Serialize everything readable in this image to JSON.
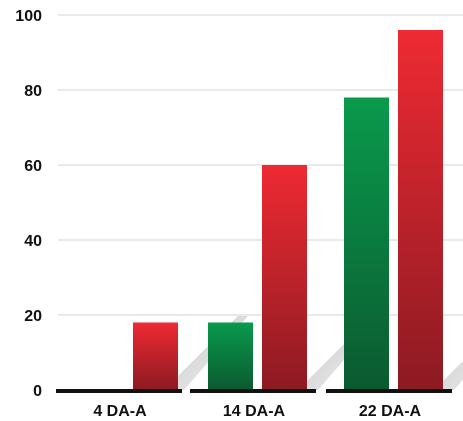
{
  "chart_data": {
    "type": "bar",
    "categories": [
      "4 DA-A",
      "14 DA-A",
      "22 DA-A"
    ],
    "series": [
      {
        "values": [
          0,
          18,
          78
        ],
        "color": "#0b8a44"
      },
      {
        "values": [
          18,
          60,
          96
        ],
        "color": "#d9232d"
      }
    ],
    "ylim": [
      0,
      100
    ],
    "yticks": [
      "0",
      "20",
      "40",
      "60",
      "80",
      "100"
    ],
    "grid": true,
    "title": "",
    "xlabel": "",
    "ylabel": ""
  }
}
